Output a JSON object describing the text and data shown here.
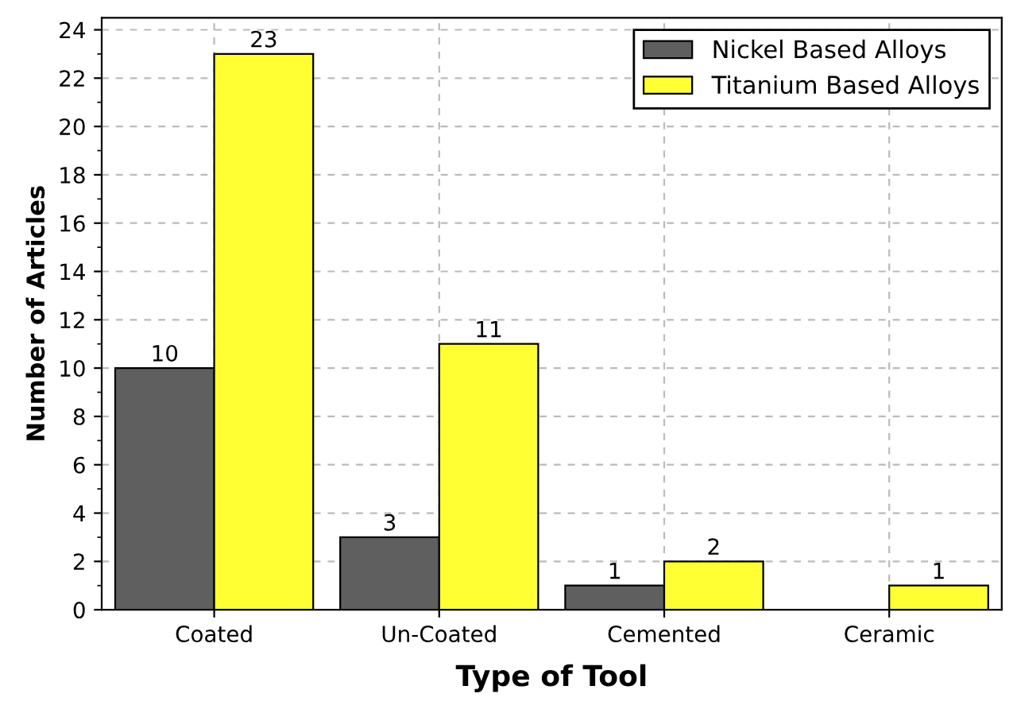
{
  "chart_data": {
    "type": "bar",
    "xlabel": "Type of Tool",
    "ylabel": "Number of Articles",
    "categories": [
      "Coated",
      "Un-Coated",
      "Cemented",
      "Ceramic"
    ],
    "series": [
      {
        "name": "Nickel Based Alloys",
        "color": "#5f5f5f",
        "values": [
          10,
          3,
          1,
          null
        ]
      },
      {
        "name": "Titanium Based Alloys",
        "color": "#ffff33",
        "values": [
          23,
          11,
          2,
          1
        ]
      }
    ],
    "ylim": [
      0,
      24.5
    ],
    "yticks": [
      0,
      2,
      4,
      6,
      8,
      10,
      12,
      14,
      16,
      18,
      20,
      22,
      24
    ],
    "grid": true,
    "legend": "top right",
    "data_labels": true
  }
}
